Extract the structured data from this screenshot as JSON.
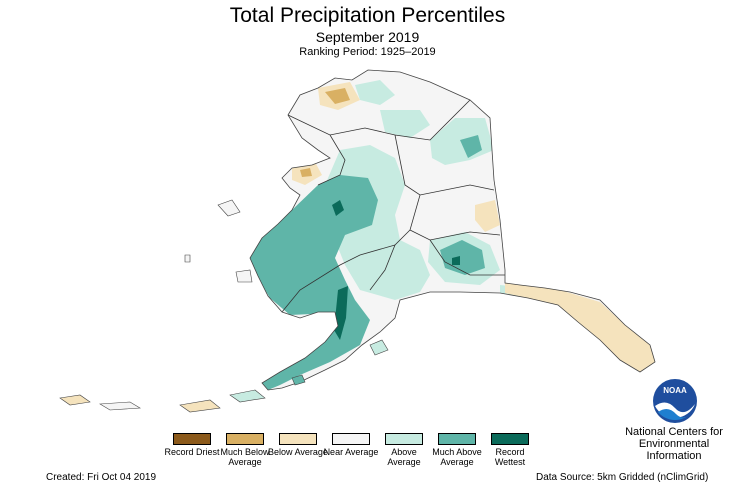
{
  "title": "Total Precipitation Percentiles",
  "subtitle": "September 2019",
  "ranking_period": "Ranking Period: 1925–2019",
  "legend": [
    {
      "label": "Record Driest",
      "color": "#8c5a1b"
    },
    {
      "label": "Much Below Average",
      "color": "#d9b063"
    },
    {
      "label": "Below Average",
      "color": "#f5e3bd"
    },
    {
      "label": "Near Average",
      "color": "#f5f5f5"
    },
    {
      "label": "Above Average",
      "color": "#c7ebe1"
    },
    {
      "label": "Much Above Average",
      "color": "#5fb5a8"
    },
    {
      "label": "Record Wettest",
      "color": "#0b6b5a"
    }
  ],
  "created": "Created: Fri Oct 04 2019",
  "data_source": "Data Source: 5km Gridded (nClimGrid)",
  "org": "National Centers for Environmental Information",
  "logo_text": "NOAA"
}
